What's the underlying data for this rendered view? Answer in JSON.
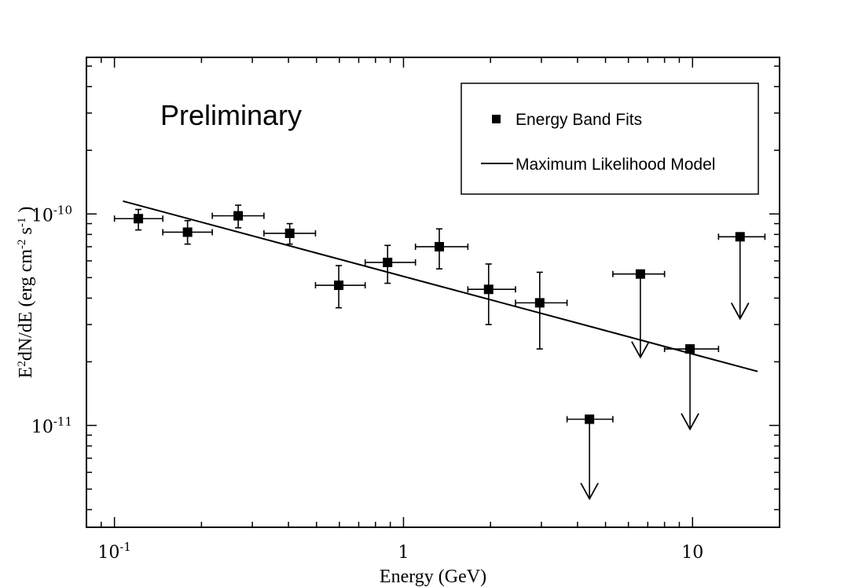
{
  "chart_data": {
    "type": "scatter",
    "xlabel": "Energy (GeV)",
    "ylabel": "E2dN/dE (erg cm-2 s-1 )",
    "ylabel_parts": {
      "base": "E",
      "sup1": "2",
      "mid": "dN/dE (erg cm",
      "sup2": "-2",
      "mid2": " s",
      "sup3": "-1",
      "end": " )"
    },
    "annotation": "Preliminary",
    "x_scale": "log",
    "y_scale": "log",
    "xlim": [
      0.08,
      20
    ],
    "ylim": [
      3.3e-12,
      5.5e-10
    ],
    "x_tick_labels": [
      {
        "value": 0.1,
        "base": "10",
        "exp": "-1"
      },
      {
        "value": 1,
        "base": "1",
        "exp": ""
      },
      {
        "value": 10,
        "base": "10",
        "exp": ""
      }
    ],
    "y_tick_labels": [
      {
        "value": 1e-10,
        "base": "10",
        "exp": "-10"
      },
      {
        "value": 1e-11,
        "base": "10",
        "exp": "-11"
      }
    ],
    "legend": {
      "position": "top-right",
      "entries": [
        "Energy Band Fits",
        "Maximum Likelihood Model"
      ]
    },
    "series": [
      {
        "name": "Energy Band Fits",
        "points": [
          {
            "x": 0.121,
            "y": 9.5e-11,
            "xlo": 0.1,
            "xhi": 0.147,
            "ylo": 8.4e-11,
            "yhi": 1.05e-10
          },
          {
            "x": 0.179,
            "y": 8.2e-11,
            "xlo": 0.147,
            "xhi": 0.218,
            "ylo": 7.2e-11,
            "yhi": 9.3e-11
          },
          {
            "x": 0.268,
            "y": 9.8e-11,
            "xlo": 0.218,
            "xhi": 0.329,
            "ylo": 8.6e-11,
            "yhi": 1.1e-10
          },
          {
            "x": 0.404,
            "y": 8.1e-11,
            "xlo": 0.329,
            "xhi": 0.496,
            "ylo": 7.2e-11,
            "yhi": 9e-11
          },
          {
            "x": 0.597,
            "y": 4.6e-11,
            "xlo": 0.496,
            "xhi": 0.737,
            "ylo": 3.6e-11,
            "yhi": 5.7e-11
          },
          {
            "x": 0.881,
            "y": 5.9e-11,
            "xlo": 0.737,
            "xhi": 1.1,
            "ylo": 4.7e-11,
            "yhi": 7.1e-11
          },
          {
            "x": 1.33,
            "y": 7e-11,
            "xlo": 1.1,
            "xhi": 1.67,
            "ylo": 5.5e-11,
            "yhi": 8.5e-11
          },
          {
            "x": 1.97,
            "y": 4.4e-11,
            "xlo": 1.67,
            "xhi": 2.44,
            "ylo": 3e-11,
            "yhi": 5.8e-11
          },
          {
            "x": 2.96,
            "y": 3.8e-11,
            "xlo": 2.44,
            "xhi": 3.68,
            "ylo": 2.3e-11,
            "yhi": 5.3e-11
          }
        ]
      },
      {
        "name": "Upper Limits",
        "points": [
          {
            "x": 4.4,
            "y": 1.07e-11,
            "xlo": 3.68,
            "xhi": 5.3,
            "ylim": 4.5e-12
          },
          {
            "x": 6.6,
            "y": 5.2e-11,
            "xlo": 5.3,
            "xhi": 8.0,
            "ylim": 2.1e-11
          },
          {
            "x": 9.8,
            "y": 2.3e-11,
            "xlo": 8.0,
            "xhi": 12.3,
            "ylim": 9.6e-12
          },
          {
            "x": 14.6,
            "y": 7.8e-11,
            "xlo": 12.3,
            "xhi": 17.8,
            "ylim": 3.2e-11
          }
        ]
      },
      {
        "name": "Maximum Likelihood Model",
        "line": [
          {
            "x": 0.107,
            "y": 1.15e-10
          },
          {
            "x": 16.8,
            "y": 1.8e-11
          }
        ]
      }
    ]
  }
}
